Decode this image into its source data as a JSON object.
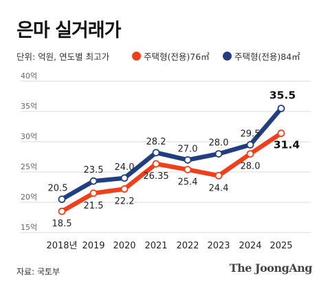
{
  "title": "은마 실거래가",
  "unit_label": "단위: 억원, 연도별 최고가",
  "source": "자료: 국토부",
  "brand": "The JoongAng",
  "colors": {
    "series_76": "#f0401b",
    "series_84": "#213f80",
    "grid": "#d9d9d9"
  },
  "chart_data": {
    "type": "line",
    "title": "은마 실거래가",
    "subtitle": "단위: 억원, 연도별 최고가",
    "x": [
      "2018년",
      "2019",
      "2020",
      "2021",
      "2022",
      "2023",
      "2024",
      "2025"
    ],
    "ylim": [
      15,
      40
    ],
    "yticks": [
      {
        "value": 15,
        "label": "15억"
      },
      {
        "value": 20,
        "label": "20억"
      },
      {
        "value": 25,
        "label": "25억"
      },
      {
        "value": 30,
        "label": "30억"
      },
      {
        "value": 35,
        "label": "35억"
      },
      {
        "value": 40,
        "label": "40억"
      }
    ],
    "grid": true,
    "legend_position": "top-right",
    "series": [
      {
        "name": "주택형(전용)76㎡",
        "color": "#f0401b",
        "values": [
          18.5,
          21.5,
          22.2,
          26.35,
          25.4,
          24.4,
          28.0,
          31.4
        ],
        "labels": [
          "18.5",
          "21.5",
          "22.2",
          "26.35",
          "25.4",
          "24.4",
          "28.0",
          "31.4"
        ]
      },
      {
        "name": "주택형(전용)84㎡",
        "color": "#213f80",
        "values": [
          20.5,
          23.5,
          24.0,
          28.2,
          27.0,
          28.0,
          29.5,
          35.5
        ],
        "labels": [
          "20.5",
          "23.5",
          "24.0",
          "28.2",
          "27.0",
          "28.0",
          "29.5",
          "35.5"
        ]
      }
    ]
  }
}
